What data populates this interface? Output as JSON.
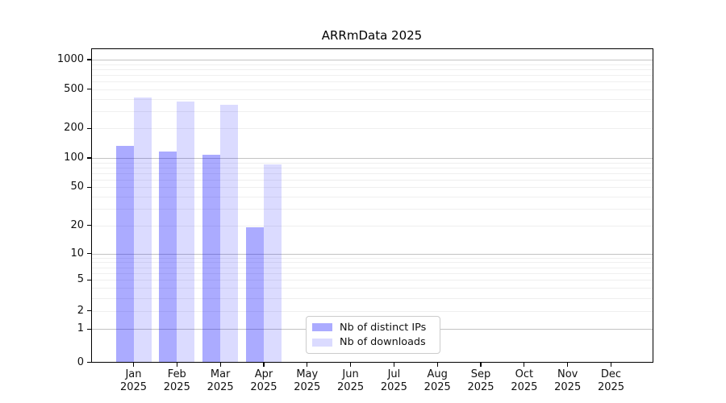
{
  "chart_data": {
    "type": "bar",
    "title": "ARRmData 2025",
    "categories": [
      "Jan",
      "Feb",
      "Mar",
      "Apr",
      "May",
      "Jun",
      "Jul",
      "Aug",
      "Sep",
      "Oct",
      "Nov",
      "Dec"
    ],
    "x_year_label": "2025",
    "series": [
      {
        "name": "Nb of distinct IPs",
        "color": "rgba(0,0,255,0.33)",
        "values": [
          133,
          117,
          108,
          19,
          null,
          null,
          null,
          null,
          null,
          null,
          null,
          null
        ]
      },
      {
        "name": "Nb of downloads",
        "color": "rgba(0,0,255,0.14)",
        "values": [
          414,
          376,
          349,
          86,
          null,
          null,
          null,
          null,
          null,
          null,
          null,
          null
        ]
      }
    ],
    "y_ticks": [
      0,
      1,
      2,
      5,
      10,
      20,
      50,
      100,
      200,
      500,
      1000
    ],
    "y_scale": "symlog",
    "ylim": [
      0,
      1300
    ],
    "grid": true,
    "legend_position": "lower center"
  }
}
